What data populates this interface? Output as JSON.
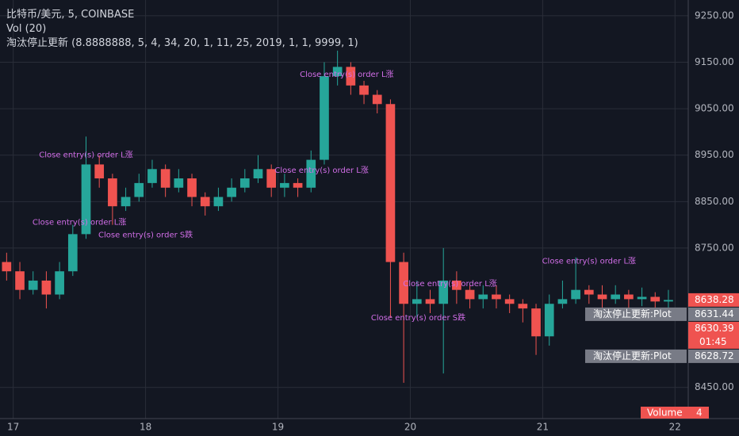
{
  "chart_data": {
    "type": "candlestick",
    "title": "比特币/美元, 5, COINBASE",
    "indicators": [
      "Vol (20)",
      "淘汰停止更新 (8.8888888, 5, 4, 34, 20, 1, 11, 25, 2019, 1, 1, 9999, 1)"
    ],
    "up_color": "#26a69a",
    "down_color": "#ef5350",
    "x": [
      16.95,
      17.05,
      17.15,
      17.25,
      17.35,
      17.45,
      17.55,
      17.65,
      17.75,
      17.85,
      17.95,
      18.05,
      18.15,
      18.25,
      18.35,
      18.45,
      18.55,
      18.65,
      18.75,
      18.85,
      18.95,
      19.05,
      19.15,
      19.25,
      19.35,
      19.45,
      19.55,
      19.65,
      19.75,
      19.85,
      19.95,
      20.05,
      20.15,
      20.25,
      20.35,
      20.45,
      20.55,
      20.65,
      20.75,
      20.85,
      20.95,
      21.05,
      21.15,
      21.25,
      21.35,
      21.45,
      21.55,
      21.65,
      21.75,
      21.85,
      21.95
    ],
    "open": [
      8720,
      8700,
      8660,
      8680,
      8650,
      8700,
      8780,
      8930,
      8900,
      8840,
      8860,
      8890,
      8920,
      8880,
      8900,
      8860,
      8840,
      8860,
      8880,
      8900,
      8920,
      8880,
      8890,
      8880,
      8940,
      9120,
      9140,
      9100,
      9080,
      9060,
      8720,
      8630,
      8640,
      8630,
      8680,
      8660,
      8640,
      8650,
      8640,
      8630,
      8620,
      8560,
      8630,
      8640,
      8660,
      8650,
      8640,
      8650,
      8640,
      8645,
      8635
    ],
    "high": [
      8740,
      8720,
      8700,
      8700,
      8720,
      8800,
      8990,
      8950,
      8910,
      8880,
      8910,
      8940,
      8930,
      8920,
      8910,
      8870,
      8880,
      8900,
      8920,
      8950,
      8930,
      8910,
      8900,
      8960,
      9150,
      9175,
      9150,
      9110,
      9090,
      9070,
      8740,
      8680,
      8660,
      8750,
      8700,
      8670,
      8670,
      8670,
      8650,
      8640,
      8630,
      8650,
      8680,
      8730,
      8670,
      8670,
      8670,
      8660,
      8665,
      8655,
      8660
    ],
    "low": [
      8680,
      8640,
      8650,
      8620,
      8640,
      8690,
      8770,
      8880,
      8800,
      8830,
      8850,
      8880,
      8860,
      8870,
      8840,
      8820,
      8830,
      8850,
      8870,
      8890,
      8860,
      8860,
      8860,
      8870,
      8930,
      9100,
      9080,
      9060,
      9040,
      8600,
      8460,
      8600,
      8610,
      8480,
      8630,
      8620,
      8620,
      8620,
      8610,
      8590,
      8520,
      8540,
      8620,
      8630,
      8630,
      8620,
      8630,
      8620,
      8625,
      8615,
      8620
    ],
    "close": [
      8700,
      8660,
      8680,
      8650,
      8700,
      8780,
      8930,
      8900,
      8840,
      8860,
      8890,
      8920,
      8880,
      8900,
      8860,
      8840,
      8860,
      8880,
      8900,
      8920,
      8880,
      8890,
      8880,
      8940,
      9120,
      9140,
      9100,
      9080,
      9060,
      8720,
      8630,
      8640,
      8630,
      8680,
      8660,
      8640,
      8650,
      8640,
      8630,
      8620,
      8560,
      8630,
      8640,
      8660,
      8650,
      8640,
      8650,
      8640,
      8645,
      8635,
      8638.28
    ],
    "xlim": [
      16.9,
      22.1
    ],
    "xticks": [
      17,
      18,
      19,
      20,
      21,
      22
    ],
    "ylim": [
      8383,
      9284
    ],
    "yticks": [
      {
        "value": 8450,
        "label": "8450.00"
      },
      {
        "value": 8750,
        "label": "8750.00"
      },
      {
        "value": 8850,
        "label": "8850.00"
      },
      {
        "value": 8950,
        "label": "8950.00"
      },
      {
        "value": 9050,
        "label": "9050.00"
      },
      {
        "value": 9150,
        "label": "9150.00"
      },
      {
        "value": 9250,
        "label": "9250.00"
      }
    ],
    "grid": true,
    "annotations": [
      {
        "text": "Close entry(s) order L涨",
        "x": 17.55,
        "y": 8950,
        "color": "#d26ee8"
      },
      {
        "text": "Close entry(s) order L涨",
        "x": 17.5,
        "y": 8805,
        "color": "#d26ee8"
      },
      {
        "text": "Close entry(s) order S跌",
        "x": 18.0,
        "y": 8778,
        "color": "#d26ee8"
      },
      {
        "text": "Close entry(s) order L涨",
        "x": 19.52,
        "y": 9124,
        "color": "#d26ee8"
      },
      {
        "text": "Close entry(s) order L涨",
        "x": 19.33,
        "y": 8917,
        "color": "#d26ee8"
      },
      {
        "text": "Close entry(s) order L涨",
        "x": 20.3,
        "y": 8673,
        "color": "#d26ee8"
      },
      {
        "text": "Close entry(s) order S跌",
        "x": 20.06,
        "y": 8600,
        "color": "#d26ee8"
      },
      {
        "text": "Close entry(s) order L涨",
        "x": 21.35,
        "y": 8722,
        "color": "#d26ee8"
      }
    ],
    "price_tags": [
      {
        "value": 8638.28,
        "color": "#ef5350"
      },
      {
        "value": 8631.44,
        "color": "#787b86",
        "name": "淘汰停止更新:Plot"
      },
      {
        "value": 8630.39,
        "color": "#ef5350",
        "countdown": "01:45"
      },
      {
        "value": 8628.72,
        "color": "#787b86",
        "name": "淘汰停止更新:Plot"
      }
    ],
    "volume_tag": {
      "name": "Volume",
      "value": 4,
      "color": "#ef5350"
    }
  }
}
